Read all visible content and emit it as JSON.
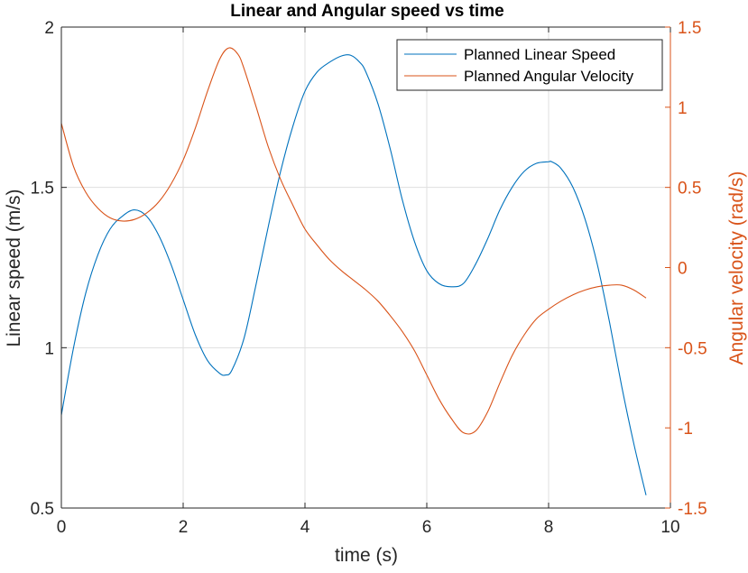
{
  "chart_data": {
    "type": "line",
    "title": "Linear and Angular speed vs time",
    "xlabel": "time (s)",
    "ylabel_left": "Linear speed (m/s)",
    "ylabel_right": "Angular velocity (rad/s)",
    "xlim": [
      0,
      10
    ],
    "ylim_left": [
      0.5,
      2
    ],
    "ylim_right": [
      -1.5,
      1.5
    ],
    "xticks": [
      "0",
      "2",
      "4",
      "6",
      "8",
      "10"
    ],
    "yticks_left": [
      "0.5",
      "1",
      "1.5",
      "2"
    ],
    "yticks_right": [
      "-1.5",
      "-1",
      "-0.5",
      "0",
      "0.5",
      "1",
      "1.5"
    ],
    "grid": true,
    "legend_position": "top-right",
    "colors": {
      "left_axis": "#262626",
      "right_axis": "#D95319"
    },
    "series": [
      {
        "name": "Planned Linear Speed",
        "axis": "left",
        "color": "#0072BD",
        "x": [
          0,
          0.2,
          0.4,
          0.6,
          0.8,
          1.0,
          1.2,
          1.4,
          1.6,
          1.8,
          2.0,
          2.2,
          2.4,
          2.6,
          2.7,
          2.8,
          3.0,
          3.2,
          3.4,
          3.6,
          3.8,
          4.0,
          4.2,
          4.4,
          4.6,
          4.75,
          4.9,
          5.0,
          5.2,
          5.4,
          5.6,
          5.8,
          6.0,
          6.2,
          6.4,
          6.6,
          6.8,
          7.0,
          7.2,
          7.4,
          7.6,
          7.8,
          8.0,
          8.05,
          8.2,
          8.4,
          8.6,
          8.8,
          9.0,
          9.2,
          9.4,
          9.6
        ],
        "y": [
          0.79,
          1.0,
          1.17,
          1.29,
          1.37,
          1.41,
          1.43,
          1.41,
          1.35,
          1.26,
          1.15,
          1.04,
          0.96,
          0.92,
          0.915,
          0.93,
          1.03,
          1.2,
          1.38,
          1.55,
          1.69,
          1.8,
          1.86,
          1.89,
          1.91,
          1.912,
          1.89,
          1.86,
          1.76,
          1.62,
          1.46,
          1.33,
          1.24,
          1.2,
          1.19,
          1.2,
          1.26,
          1.34,
          1.43,
          1.5,
          1.55,
          1.575,
          1.58,
          1.58,
          1.56,
          1.5,
          1.4,
          1.26,
          1.08,
          0.88,
          0.7,
          0.54
        ]
      },
      {
        "name": "Planned Angular Velocity",
        "axis": "right",
        "color": "#D95319",
        "x": [
          0,
          0.2,
          0.4,
          0.6,
          0.8,
          1.0,
          1.2,
          1.4,
          1.6,
          1.8,
          2.0,
          2.2,
          2.4,
          2.6,
          2.75,
          2.9,
          3.0,
          3.2,
          3.4,
          3.6,
          3.8,
          4.0,
          4.2,
          4.4,
          4.6,
          4.8,
          5.0,
          5.2,
          5.4,
          5.6,
          5.8,
          6.0,
          6.2,
          6.4,
          6.6,
          6.8,
          7.0,
          7.2,
          7.4,
          7.6,
          7.8,
          8.0,
          8.2,
          8.4,
          8.6,
          8.8,
          9.0,
          9.2,
          9.4,
          9.6
        ],
        "y": [
          0.9,
          0.63,
          0.47,
          0.37,
          0.31,
          0.29,
          0.3,
          0.34,
          0.41,
          0.52,
          0.67,
          0.87,
          1.1,
          1.3,
          1.37,
          1.33,
          1.24,
          1.0,
          0.75,
          0.55,
          0.39,
          0.24,
          0.14,
          0.05,
          -0.02,
          -0.08,
          -0.14,
          -0.21,
          -0.3,
          -0.4,
          -0.52,
          -0.67,
          -0.82,
          -0.94,
          -1.03,
          -1.02,
          -0.9,
          -0.72,
          -0.55,
          -0.42,
          -0.32,
          -0.26,
          -0.21,
          -0.17,
          -0.14,
          -0.12,
          -0.11,
          -0.11,
          -0.14,
          -0.19
        ]
      }
    ]
  }
}
